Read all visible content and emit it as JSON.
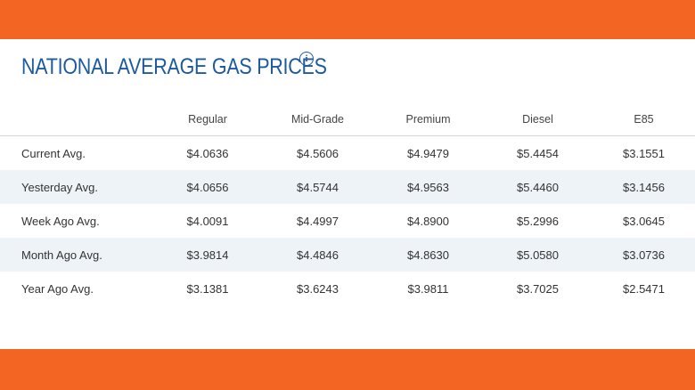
{
  "header": {
    "title": "NATIONAL AVERAGE GAS PRICES",
    "info_icon": "info-icon"
  },
  "colors": {
    "accent": "#f26522",
    "title": "#1e5aa0",
    "alt_row": "#eef3f8"
  },
  "table": {
    "columns": [
      "",
      "Regular",
      "Mid-Grade",
      "Premium",
      "Diesel",
      "E85"
    ],
    "rows": [
      {
        "label": "Current Avg.",
        "values": [
          "$4.0636",
          "$4.5606",
          "$4.9479",
          "$5.4454",
          "$3.1551"
        ]
      },
      {
        "label": "Yesterday Avg.",
        "values": [
          "$4.0656",
          "$4.5744",
          "$4.9563",
          "$5.4460",
          "$3.1456"
        ]
      },
      {
        "label": "Week Ago Avg.",
        "values": [
          "$4.0091",
          "$4.4997",
          "$4.8900",
          "$5.2996",
          "$3.0645"
        ]
      },
      {
        "label": "Month Ago Avg.",
        "values": [
          "$3.9814",
          "$4.4846",
          "$4.8630",
          "$5.0580",
          "$3.0736"
        ]
      },
      {
        "label": "Year Ago Avg.",
        "values": [
          "$3.1381",
          "$3.6243",
          "$3.9811",
          "$3.7025",
          "$2.5471"
        ]
      }
    ]
  }
}
